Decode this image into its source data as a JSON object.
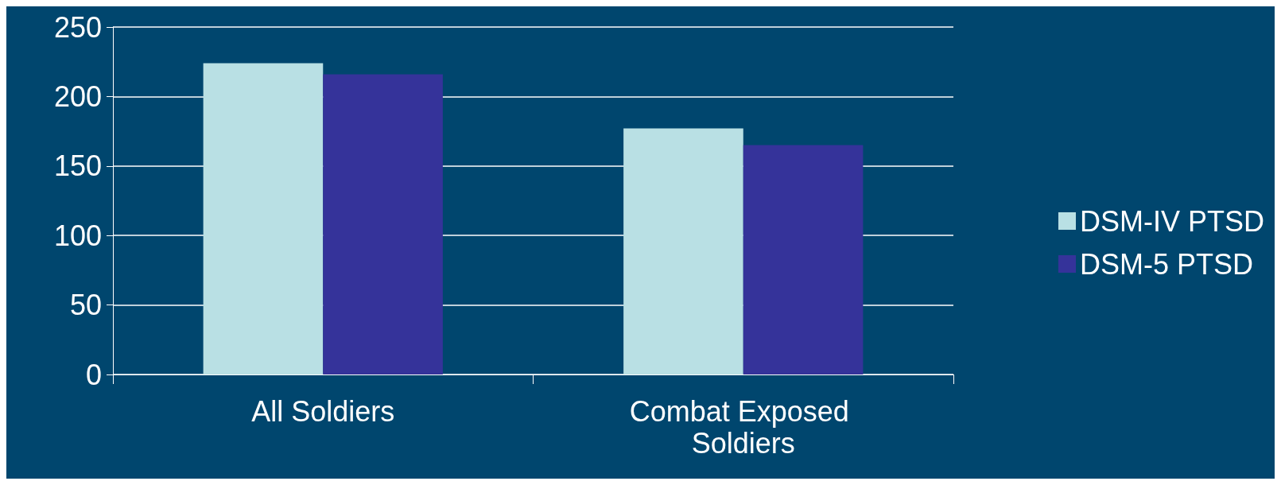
{
  "chart_data": {
    "type": "bar",
    "categories": [
      "All Soldiers",
      "Combat Exposed Soldiers"
    ],
    "series": [
      {
        "name": "DSM-IV PTSD",
        "color": "#b9e0e4",
        "values": [
          224,
          177
        ]
      },
      {
        "name": "DSM-5 PTSD",
        "color": "#35339a",
        "values": [
          216,
          165
        ]
      }
    ],
    "ylim": [
      0,
      250
    ],
    "yticks": [
      0,
      50,
      100,
      150,
      200,
      250
    ],
    "grid": "y",
    "legend": "right"
  }
}
